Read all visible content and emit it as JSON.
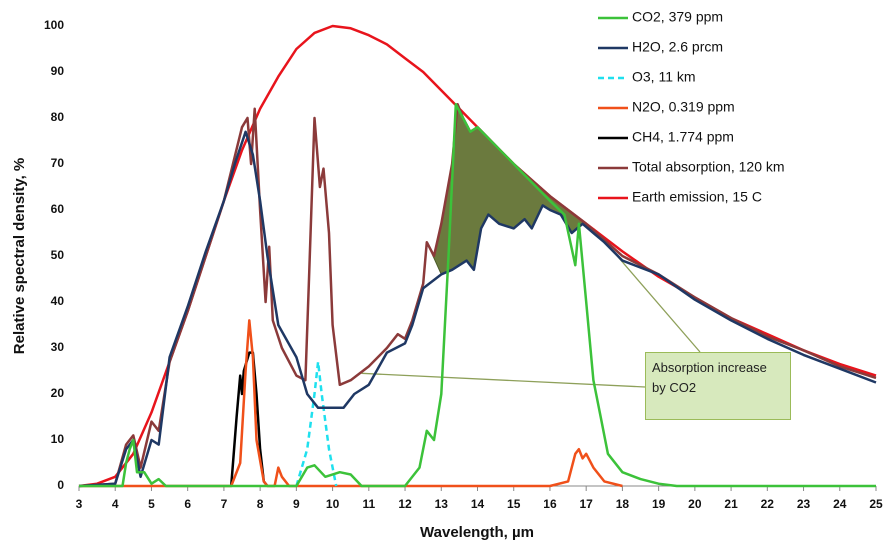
{
  "chart_data": {
    "type": "line",
    "xlabel": "Wavelength, µm",
    "ylabel": "Relative spectral density, %",
    "xlim": [
      3,
      25
    ],
    "xticks": [
      3,
      4,
      5,
      6,
      7,
      8,
      9,
      10,
      11,
      12,
      13,
      14,
      15,
      16,
      17,
      18,
      19,
      20,
      21,
      22,
      23,
      24,
      25
    ],
    "ylim": [
      0,
      100
    ],
    "yticks": [
      0,
      10,
      20,
      30,
      40,
      50,
      60,
      70,
      80,
      90,
      100
    ],
    "grid": false,
    "legend": "top-right",
    "shade": {
      "color": "#6b7a3e",
      "from": 12.6,
      "to": 17
    },
    "annotation": {
      "text": "Absorption increase by CO2",
      "targets": [
        [
          10.8,
          24.5
        ],
        [
          17.2,
          56
        ]
      ]
    },
    "series": [
      {
        "name": "CO2, 379 ppm",
        "color": "#3cc23a",
        "dash": false,
        "x": [
          3,
          4.2,
          4.3,
          4.4,
          4.5,
          4.6,
          4.8,
          5,
          5.2,
          5.4,
          9,
          9.3,
          9.5,
          9.8,
          10.2,
          10.5,
          10.8,
          12,
          12.4,
          12.6,
          12.8,
          13,
          13.2,
          13.4,
          13.6,
          13.8,
          14,
          15,
          16,
          16.4,
          16.7,
          16.8,
          17,
          17.2,
          17.4,
          17.6,
          18,
          18.5,
          19,
          19.5,
          25
        ],
        "values": [
          0,
          0,
          5,
          8,
          10,
          3,
          3,
          0.5,
          1.5,
          0,
          0,
          4,
          4.5,
          2,
          3,
          2.5,
          0,
          0,
          4,
          12,
          10,
          20,
          50,
          83,
          80,
          77,
          78,
          70,
          62,
          59,
          48,
          57,
          40,
          23,
          15,
          7,
          3,
          1.5,
          0.5,
          0,
          0
        ]
      },
      {
        "name": "H2O, 2.6 prcm",
        "color": "#1f3864",
        "dash": false,
        "x": [
          3,
          4,
          4.3,
          4.5,
          4.7,
          5,
          5.2,
          5.5,
          6,
          6.5,
          7,
          7.3,
          7.6,
          7.8,
          8,
          8.2,
          8.5,
          9,
          9.3,
          9.6,
          10,
          10.3,
          10.6,
          11,
          11.5,
          12,
          12.2,
          12.5,
          13,
          13.3,
          13.7,
          13.9,
          14.1,
          14.3,
          14.6,
          15,
          15.3,
          15.5,
          15.8,
          16,
          16.3,
          16.6,
          16.9,
          17.2,
          17.5,
          18,
          19,
          20,
          21,
          22,
          23,
          24,
          25
        ],
        "values": [
          0,
          0.5,
          8,
          10,
          2,
          10,
          9,
          28,
          39,
          51,
          62,
          70,
          77,
          72,
          62,
          50,
          35,
          28,
          20,
          17,
          17,
          17,
          20,
          22,
          29,
          31,
          35,
          43,
          46,
          47,
          49,
          47,
          56,
          59,
          57,
          56,
          58,
          56,
          61,
          60,
          59,
          55,
          57,
          55,
          53,
          49,
          46,
          40.5,
          36,
          32,
          28.5,
          25.5,
          22.5
        ]
      },
      {
        "name": "O3, 11 km",
        "color": "#1fe0ee",
        "dash": true,
        "x": [
          9,
          9.3,
          9.5,
          9.6,
          9.7,
          9.9,
          10.1
        ],
        "values": [
          0,
          8,
          20,
          27,
          20,
          8,
          0
        ]
      },
      {
        "name": "N2O, 0.319 ppm",
        "color": "#f0501a",
        "dash": false,
        "x": [
          3,
          7.2,
          7.45,
          7.6,
          7.7,
          7.8,
          7.9,
          8.1,
          8.2,
          8.4,
          8.5,
          8.6,
          8.8,
          16,
          16.5,
          16.7,
          16.8,
          16.9,
          17,
          17.2,
          17.5,
          18
        ],
        "values": [
          0,
          0,
          5,
          25,
          36,
          28,
          10,
          1,
          0,
          0,
          4,
          2,
          0,
          0,
          1,
          7,
          8,
          6,
          7,
          4,
          1,
          0
        ]
      },
      {
        "name": "CH4, 1.774 ppm",
        "color": "#000000",
        "dash": false,
        "x": [
          7.2,
          7.35,
          7.45,
          7.5,
          7.55,
          7.7,
          7.8,
          7.9,
          8,
          8.1,
          8.2
        ],
        "values": [
          0,
          15,
          24,
          20,
          25,
          29,
          29,
          20,
          8,
          1,
          0
        ]
      },
      {
        "name": "Total absorption, 120 km",
        "color": "#8b3a3a",
        "dash": false,
        "x": [
          3,
          4,
          4.3,
          4.5,
          4.7,
          5,
          5.2,
          5.5,
          6,
          6.5,
          7,
          7.5,
          7.65,
          7.75,
          7.85,
          8,
          8.15,
          8.25,
          8.35,
          8.6,
          9,
          9.25,
          9.35,
          9.5,
          9.65,
          9.75,
          9.9,
          10,
          10.2,
          10.5,
          11,
          11.5,
          11.8,
          12,
          12.2,
          12.5,
          12.6,
          12.8,
          13,
          13.3,
          13.45,
          13.6,
          13.8,
          14,
          15,
          16,
          17,
          18,
          19,
          20,
          21,
          22,
          23,
          24,
          25
        ],
        "values": [
          0,
          0.5,
          9,
          11,
          4,
          14,
          12,
          27,
          38,
          50,
          62,
          78,
          80,
          70,
          82,
          60,
          40,
          52,
          36,
          30,
          24,
          23,
          45,
          80,
          65,
          69,
          55,
          35,
          22,
          23,
          26,
          30,
          33,
          32,
          36,
          44,
          53,
          50,
          57,
          70,
          83,
          80,
          77,
          78,
          70,
          63,
          57,
          50,
          46,
          41,
          36.5,
          32.5,
          29.5,
          26,
          23.5
        ]
      },
      {
        "name": "Earth emission, 15 C",
        "color": "#e8141c",
        "dash": false,
        "x": [
          3,
          3.5,
          4,
          4.5,
          5,
          5.5,
          6,
          6.5,
          7,
          7.5,
          8,
          8.5,
          9,
          9.5,
          10,
          10.5,
          11,
          11.5,
          12,
          12.5,
          13,
          13.5,
          14,
          15,
          16,
          17,
          18,
          19,
          20,
          21,
          22,
          23,
          24,
          25
        ],
        "values": [
          0,
          0.5,
          2,
          7,
          16,
          27,
          38,
          50,
          62,
          73,
          82,
          89,
          95,
          98.5,
          100,
          99.5,
          98,
          96,
          93,
          90,
          86,
          82,
          78,
          70,
          63,
          57,
          51,
          45.5,
          41,
          36.5,
          33,
          29.5,
          26.5,
          24
        ]
      }
    ]
  }
}
